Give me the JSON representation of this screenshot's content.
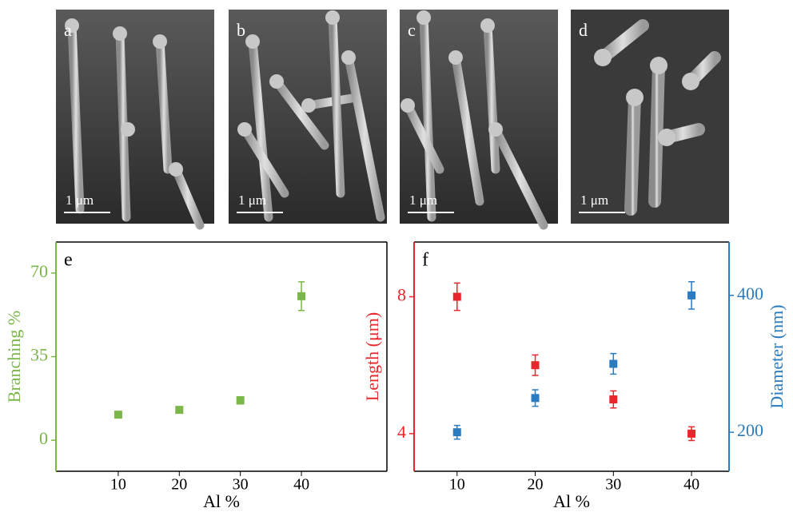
{
  "panels": [
    {
      "label": "a",
      "scale": "1 μm"
    },
    {
      "label": "b",
      "scale": "1 μm"
    },
    {
      "label": "c",
      "scale": "1 μm"
    },
    {
      "label": "d",
      "scale": "1 μm"
    }
  ],
  "chart_data": [
    {
      "type": "scatter",
      "panel_label": "e",
      "y_label": "Branching %",
      "x_label": "Al %",
      "x": [
        10,
        20,
        30,
        40
      ],
      "xlim": [
        -0.2,
        54
      ],
      "xticks": [
        10,
        20,
        30,
        40
      ],
      "ylim": [
        -13,
        83
      ],
      "yticks": [
        0,
        35,
        70
      ],
      "series": [
        {
          "color": "#7ab648",
          "values": [
            10.7,
            12.7,
            16.7,
            60.3
          ],
          "errors": [
            1,
            1,
            1.5,
            6
          ]
        }
      ]
    },
    {
      "type": "scatter",
      "panel_label": "f",
      "y_label": "Length (μm)",
      "y2_label": "Diameter (nm)",
      "x_label": "Al %",
      "x": [
        10,
        20,
        30,
        40
      ],
      "xlim": [
        4.5,
        44.8
      ],
      "xticks": [
        10,
        20,
        30,
        40
      ],
      "ylim": [
        2.9,
        9.6
      ],
      "yticks": [
        4,
        8
      ],
      "y2lim": [
        143,
        478
      ],
      "y2ticks": [
        200,
        400
      ],
      "series": [
        {
          "color": "#e8262b",
          "values": [
            8,
            6,
            5,
            4
          ],
          "errors": [
            0.4,
            0.3,
            0.25,
            0.2
          ]
        },
        {
          "color": "#2a7bbf",
          "axis": "y2",
          "values": [
            200,
            250,
            300,
            400
          ],
          "errors": [
            10,
            12,
            15,
            20
          ]
        }
      ]
    }
  ]
}
